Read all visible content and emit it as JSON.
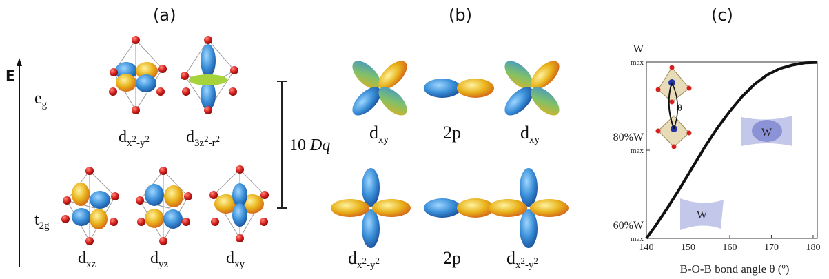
{
  "panel_a": {
    "letter": "(a)",
    "energy_axis": "E",
    "eg_label": "e",
    "eg_sub": "g",
    "t2g_label": "t",
    "t2g_sub": "2g",
    "gap_label_num": "10",
    "gap_label_sym": "Dq",
    "orbitals": {
      "dx2y2": {
        "base": "d",
        "sub": "x",
        "sup1": "2",
        "mid": "-y",
        "sup2": "2"
      },
      "d3z2r2": {
        "base": "d",
        "sub": "3z",
        "sup1": "2",
        "mid": "-r",
        "sup2": "2"
      },
      "dxz": {
        "base": "d",
        "sub": "xz"
      },
      "dyz": {
        "base": "d",
        "sub": "yz"
      },
      "dxy": {
        "base": "d",
        "sub": "xy"
      }
    }
  },
  "panel_b": {
    "letter": "(b)",
    "top_row": {
      "left": {
        "base": "d",
        "sub": "xy"
      },
      "middle": "2p",
      "right": {
        "base": "d",
        "sub": "xy"
      }
    },
    "bottom_row": {
      "left": {
        "base": "d",
        "sub": "x",
        "sup1": "2",
        "mid": "-y",
        "sup2": "2"
      },
      "middle": "2p",
      "right": {
        "base": "d",
        "sub": "x",
        "sup1": "2",
        "mid": "-y",
        "sup2": "2"
      }
    }
  },
  "panel_c": {
    "letter": "(c)",
    "inset_angle_label": "θ",
    "badge_label": "W",
    "badge2_label": "W",
    "chart_data": {
      "type": "line",
      "xlabel": "B-O-B bond angle θ (º)",
      "ylabel": "",
      "x_ticks": [
        "140",
        "150",
        "160",
        "170",
        "180"
      ],
      "xlim": [
        140,
        181
      ],
      "ylim": [
        0.6,
        1.0
      ],
      "y_ticks": [
        {
          "main": "W",
          "sub": "max",
          "value": 1.0
        },
        {
          "main": "80%W",
          "sub": "max",
          "value": 0.8
        },
        {
          "main": "60%W",
          "sub": "max",
          "value": 0.6
        }
      ],
      "series": [
        {
          "x": [
            140,
            142,
            145,
            148,
            151,
            154,
            157,
            160,
            163,
            166,
            169,
            172,
            175,
            178,
            181
          ],
          "y": [
            0.6,
            0.626,
            0.668,
            0.713,
            0.76,
            0.807,
            0.85,
            0.888,
            0.922,
            0.95,
            0.971,
            0.985,
            0.993,
            0.998,
            0.999
          ]
        }
      ]
    }
  },
  "colors": {
    "oxygen": "#d6201e",
    "lobe_blue": "#3a8fd8",
    "lobe_yellow": "#e8b21a",
    "badge": "#8b93d6"
  }
}
